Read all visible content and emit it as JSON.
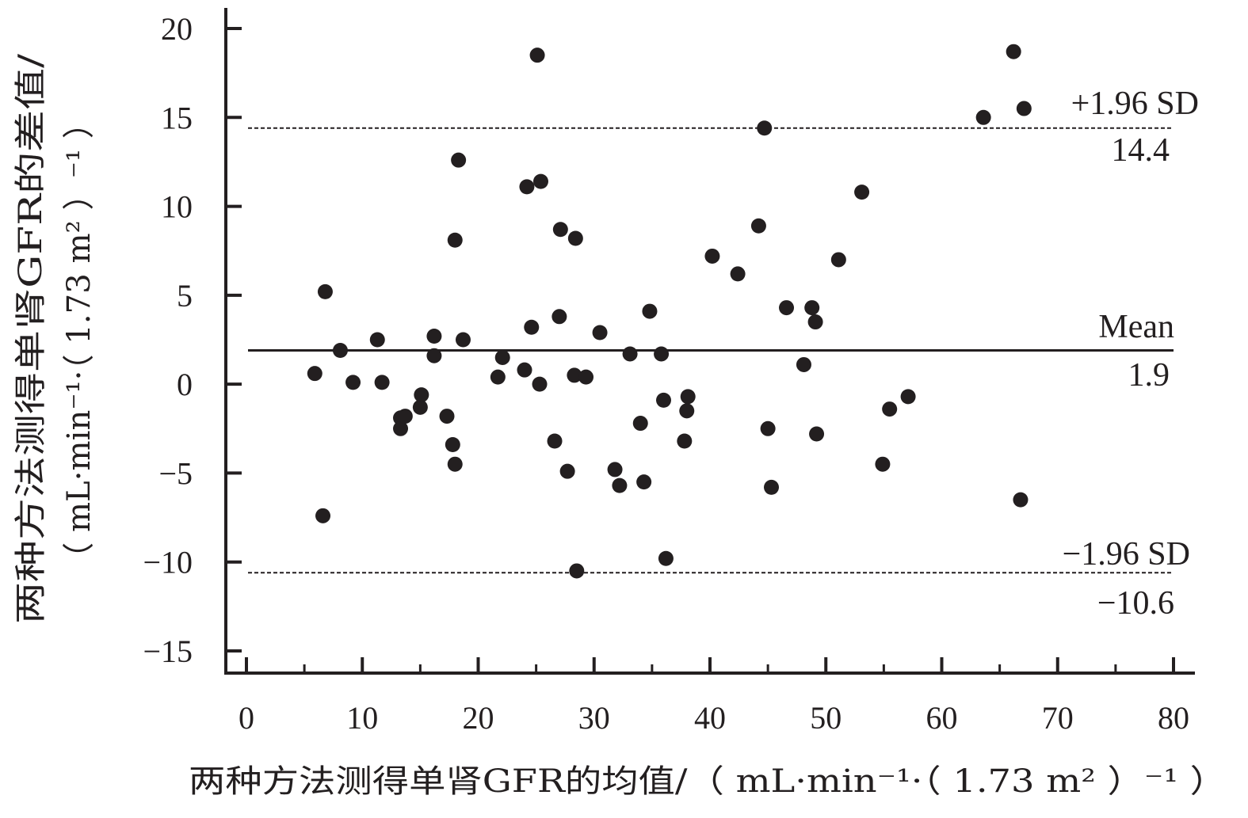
{
  "chart_data": {
    "type": "scatter",
    "xlabel": "两种方法测得单肾GFR的均值/（ mL·min⁻¹·（ 1.73 m² ）⁻¹ ）",
    "ylabel_line1": "两种方法测得单肾GFR的差值/",
    "ylabel_line2": "（ mL·min⁻¹·（ 1.73 m² ）⁻¹ ）",
    "xlim": [
      0,
      80
    ],
    "ylim": [
      -15,
      20
    ],
    "x_ticks": [
      0,
      10,
      20,
      30,
      40,
      50,
      60,
      70,
      80
    ],
    "y_ticks": [
      20,
      15,
      10,
      5,
      0,
      -5,
      -10,
      -15
    ],
    "y_tick_labels": [
      "20",
      "15",
      "10",
      "5",
      "0",
      "−5",
      "−10",
      "−15"
    ],
    "grid": false,
    "reference_lines": [
      {
        "label": "+1.96 SD",
        "value_label": "14.4",
        "y": 14.4,
        "style": "dashed"
      },
      {
        "label": "Mean",
        "value_label": "1.9",
        "y": 1.9,
        "style": "solid"
      },
      {
        "label": "−1.96 SD",
        "value_label": "−10.6",
        "y": -10.6,
        "style": "dashed"
      }
    ],
    "points": [
      {
        "x": 5.9,
        "y": 0.6
      },
      {
        "x": 6.6,
        "y": -7.4
      },
      {
        "x": 6.8,
        "y": 5.2
      },
      {
        "x": 8.1,
        "y": 1.9
      },
      {
        "x": 9.2,
        "y": 0.1
      },
      {
        "x": 11.3,
        "y": 2.5
      },
      {
        "x": 11.7,
        "y": 0.1
      },
      {
        "x": 13.3,
        "y": -1.9
      },
      {
        "x": 13.3,
        "y": -2.5
      },
      {
        "x": 13.7,
        "y": -1.8
      },
      {
        "x": 15.0,
        "y": -1.3
      },
      {
        "x": 15.1,
        "y": -0.6
      },
      {
        "x": 16.2,
        "y": 2.7
      },
      {
        "x": 16.2,
        "y": 1.6
      },
      {
        "x": 17.3,
        "y": -1.8
      },
      {
        "x": 17.8,
        "y": -3.4
      },
      {
        "x": 18.0,
        "y": -4.5
      },
      {
        "x": 18.0,
        "y": 8.1
      },
      {
        "x": 18.3,
        "y": 12.6
      },
      {
        "x": 18.7,
        "y": 2.5
      },
      {
        "x": 21.7,
        "y": 0.4
      },
      {
        "x": 22.1,
        "y": 1.5
      },
      {
        "x": 24.0,
        "y": 0.8
      },
      {
        "x": 24.2,
        "y": 11.1
      },
      {
        "x": 24.6,
        "y": 3.2
      },
      {
        "x": 25.1,
        "y": 18.5
      },
      {
        "x": 25.3,
        "y": 0.0
      },
      {
        "x": 25.4,
        "y": 11.4
      },
      {
        "x": 26.6,
        "y": -3.2
      },
      {
        "x": 27.0,
        "y": 3.8
      },
      {
        "x": 27.1,
        "y": 8.7
      },
      {
        "x": 27.7,
        "y": -4.9
      },
      {
        "x": 28.3,
        "y": 0.5
      },
      {
        "x": 28.4,
        "y": 8.2
      },
      {
        "x": 28.5,
        "y": -10.5
      },
      {
        "x": 29.3,
        "y": 0.4
      },
      {
        "x": 30.5,
        "y": 2.9
      },
      {
        "x": 31.8,
        "y": -4.8
      },
      {
        "x": 32.2,
        "y": -5.7
      },
      {
        "x": 33.1,
        "y": 1.7
      },
      {
        "x": 34.0,
        "y": -2.2
      },
      {
        "x": 34.3,
        "y": -5.5
      },
      {
        "x": 34.8,
        "y": 4.1
      },
      {
        "x": 35.8,
        "y": 1.7
      },
      {
        "x": 36.0,
        "y": -0.9
      },
      {
        "x": 36.2,
        "y": -9.8
      },
      {
        "x": 37.8,
        "y": -3.2
      },
      {
        "x": 38.0,
        "y": -1.5
      },
      {
        "x": 38.1,
        "y": -0.7
      },
      {
        "x": 40.2,
        "y": 7.2
      },
      {
        "x": 42.4,
        "y": 6.2
      },
      {
        "x": 44.2,
        "y": 8.9
      },
      {
        "x": 44.7,
        "y": 14.4
      },
      {
        "x": 45.0,
        "y": -2.5
      },
      {
        "x": 45.3,
        "y": -5.8
      },
      {
        "x": 46.6,
        "y": 4.3
      },
      {
        "x": 48.1,
        "y": 1.1
      },
      {
        "x": 48.8,
        "y": 4.3
      },
      {
        "x": 49.1,
        "y": 3.5
      },
      {
        "x": 49.2,
        "y": -2.8
      },
      {
        "x": 51.1,
        "y": 7.0
      },
      {
        "x": 53.1,
        "y": 10.8
      },
      {
        "x": 54.9,
        "y": -4.5
      },
      {
        "x": 55.5,
        "y": -1.4
      },
      {
        "x": 57.1,
        "y": -0.7
      },
      {
        "x": 63.6,
        "y": 15.0
      },
      {
        "x": 66.2,
        "y": 18.7
      },
      {
        "x": 66.8,
        "y": -6.5
      },
      {
        "x": 67.1,
        "y": 15.5
      }
    ]
  },
  "colors": {
    "marker": "#231f20",
    "axis": "#231f20",
    "text": "#231f20"
  }
}
